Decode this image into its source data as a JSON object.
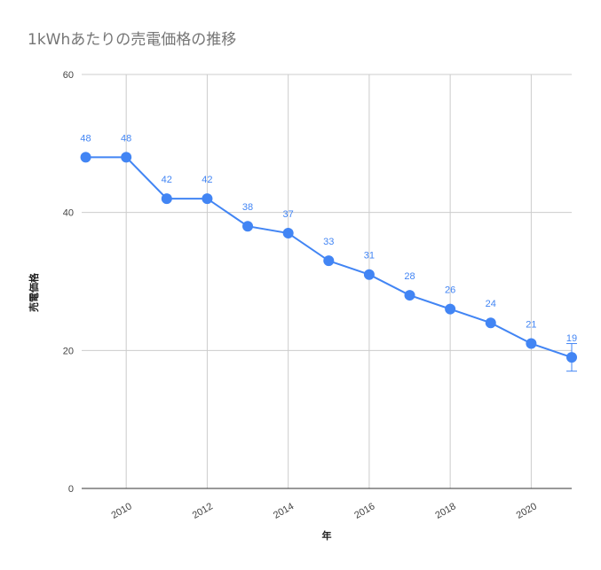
{
  "chart_data": {
    "type": "line",
    "title": "1kWhあたりの売電価格の推移",
    "xlabel": "年",
    "ylabel": "売電価格",
    "x": [
      2009,
      2010,
      2011,
      2012,
      2013,
      2014,
      2015,
      2016,
      2017,
      2018,
      2019,
      2020,
      2021
    ],
    "series": [
      {
        "values": [
          48,
          48,
          42,
          42,
          38,
          37,
          33,
          31,
          28,
          26,
          24,
          21,
          19
        ],
        "data_labels": [
          "48",
          "48",
          "42",
          "42",
          "38",
          "37",
          "33",
          "31",
          "28",
          "26",
          "24",
          "21",
          "19"
        ],
        "color": "#4285f4"
      }
    ],
    "xticks": [
      "2010",
      "2012",
      "2014",
      "2016",
      "2018",
      "2020"
    ],
    "yticks": [
      "0",
      "20",
      "40",
      "60"
    ],
    "xlim": [
      2008.9,
      2021
    ],
    "ylim": [
      0,
      60
    ],
    "grid": true,
    "error_bar": {
      "x": 2021,
      "low": 17,
      "high": 21
    },
    "colors": {
      "line": "#4285f4",
      "grid": "#cccccc",
      "axis": "#333333",
      "title": "#757575"
    }
  }
}
